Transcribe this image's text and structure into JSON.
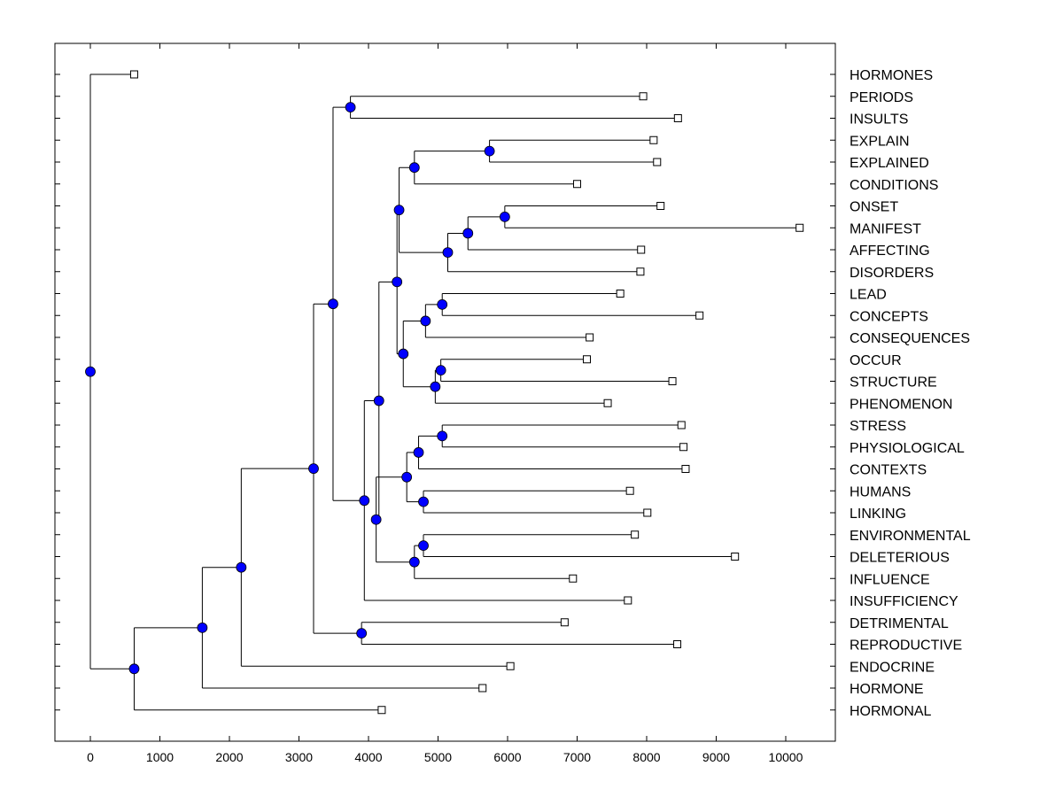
{
  "chart_data": {
    "type": "dendrogram",
    "title": "",
    "xlabel": "",
    "ylabel": "",
    "xlim": [
      -500,
      10700
    ],
    "x_ticks": [
      0,
      1000,
      2000,
      3000,
      4000,
      5000,
      6000,
      7000,
      8000,
      9000,
      10000
    ],
    "leaves": [
      {
        "label": "HORMONES",
        "value": 630
      },
      {
        "label": "PERIODS",
        "value": 7950
      },
      {
        "label": "INSULTS",
        "value": 8450
      },
      {
        "label": "EXPLAIN",
        "value": 8100
      },
      {
        "label": "EXPLAINED",
        "value": 8150
      },
      {
        "label": "CONDITIONS",
        "value": 7000
      },
      {
        "label": "ONSET",
        "value": 8200
      },
      {
        "label": "MANIFEST",
        "value": 10200
      },
      {
        "label": "AFFECTING",
        "value": 7920
      },
      {
        "label": "DISORDERS",
        "value": 7910
      },
      {
        "label": "LEAD",
        "value": 7620
      },
      {
        "label": "CONCEPTS",
        "value": 8760
      },
      {
        "label": "CONSEQUENCES",
        "value": 7180
      },
      {
        "label": "OCCUR",
        "value": 7140
      },
      {
        "label": "STRUCTURE",
        "value": 8370
      },
      {
        "label": "PHENOMENON",
        "value": 7440
      },
      {
        "label": "STRESS",
        "value": 8500
      },
      {
        "label": "PHYSIOLOGICAL",
        "value": 8530
      },
      {
        "label": "CONTEXTS",
        "value": 8560
      },
      {
        "label": "HUMANS",
        "value": 7760
      },
      {
        "label": "LINKING",
        "value": 8010
      },
      {
        "label": "ENVIRONMENTAL",
        "value": 7830
      },
      {
        "label": "DELETERIOUS",
        "value": 9270
      },
      {
        "label": "INFLUENCE",
        "value": 6940
      },
      {
        "label": "INSUFFICIENCY",
        "value": 7730
      },
      {
        "label": "DETRIMENTAL",
        "value": 6820
      },
      {
        "label": "REPRODUCTIVE",
        "value": 8440
      },
      {
        "label": "ENDOCRINE",
        "value": 6040
      },
      {
        "label": "HORMONE",
        "value": 5640
      },
      {
        "label": "HORMONAL",
        "value": 4190
      }
    ],
    "merges": [
      {
        "id": "n1",
        "value": 3740,
        "children": [
          "PERIODS",
          "INSULTS"
        ]
      },
      {
        "id": "n2",
        "value": 5740,
        "children": [
          "EXPLAIN",
          "EXPLAINED"
        ]
      },
      {
        "id": "n3",
        "value": 4660,
        "children": [
          "n2",
          "CONDITIONS"
        ]
      },
      {
        "id": "n4",
        "value": 5960,
        "children": [
          "ONSET",
          "MANIFEST"
        ]
      },
      {
        "id": "n5",
        "value": 5430,
        "children": [
          "n4",
          "AFFECTING"
        ]
      },
      {
        "id": "n6",
        "value": 5140,
        "children": [
          "n5",
          "DISORDERS"
        ]
      },
      {
        "id": "n7",
        "value": 4440,
        "children": [
          "n3",
          "n6"
        ]
      },
      {
        "id": "n8",
        "value": 5060,
        "children": [
          "LEAD",
          "CONCEPTS"
        ]
      },
      {
        "id": "n9",
        "value": 4820,
        "children": [
          "n8",
          "CONSEQUENCES"
        ]
      },
      {
        "id": "n10",
        "value": 5040,
        "children": [
          "OCCUR",
          "STRUCTURE"
        ]
      },
      {
        "id": "n11",
        "value": 4960,
        "children": [
          "n10",
          "PHENOMENON"
        ]
      },
      {
        "id": "n12",
        "value": 4500,
        "children": [
          "n9",
          "n11"
        ]
      },
      {
        "id": "n13",
        "value": 4410,
        "children": [
          "n7",
          "n12"
        ]
      },
      {
        "id": "n14",
        "value": 5060,
        "children": [
          "STRESS",
          "PHYSIOLOGICAL"
        ]
      },
      {
        "id": "n15",
        "value": 4720,
        "children": [
          "n14",
          "CONTEXTS"
        ]
      },
      {
        "id": "n16",
        "value": 4790,
        "children": [
          "HUMANS",
          "LINKING"
        ]
      },
      {
        "id": "n17",
        "value": 4550,
        "children": [
          "n15",
          "n16"
        ]
      },
      {
        "id": "n18",
        "value": 4790,
        "children": [
          "ENVIRONMENTAL",
          "DELETERIOUS"
        ]
      },
      {
        "id": "n19",
        "value": 4660,
        "children": [
          "n18",
          "INFLUENCE"
        ]
      },
      {
        "id": "n20",
        "value": 4110,
        "children": [
          "n17",
          "n19"
        ]
      },
      {
        "id": "n21",
        "value": 4150,
        "children": [
          "n13",
          "n20"
        ]
      },
      {
        "id": "n22",
        "value": 3940,
        "children": [
          "n21",
          "INSUFFICIENCY"
        ]
      },
      {
        "id": "n23",
        "value": 3490,
        "children": [
          "n1",
          "n22"
        ]
      },
      {
        "id": "n24",
        "value": 3900,
        "children": [
          "DETRIMENTAL",
          "REPRODUCTIVE"
        ]
      },
      {
        "id": "n25",
        "value": 3210,
        "children": [
          "n23",
          "n24"
        ]
      },
      {
        "id": "n26",
        "value": 2170,
        "children": [
          "n25",
          "ENDOCRINE"
        ]
      },
      {
        "id": "n27",
        "value": 1610,
        "children": [
          "n26",
          "HORMONE"
        ]
      },
      {
        "id": "n28",
        "value": 630,
        "children": [
          "n27",
          "HORMONAL"
        ]
      },
      {
        "id": "n29",
        "value": 0,
        "children": [
          "HORMONES",
          "n28"
        ]
      }
    ],
    "colors": {
      "node": "#0000ff",
      "line": "#000000",
      "leaf_fill": "#ffffff"
    }
  }
}
